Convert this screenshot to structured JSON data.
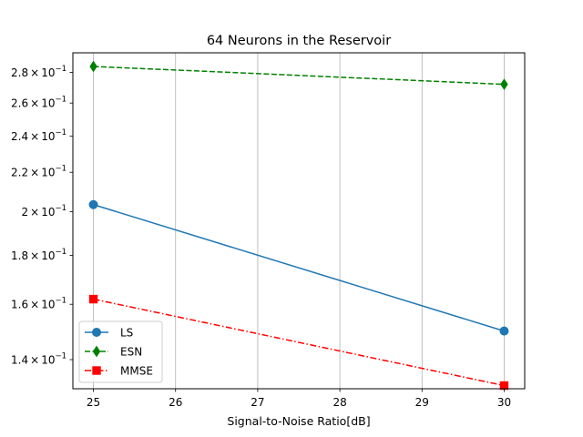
{
  "chart_data": {
    "type": "line",
    "title": "64 Neurons in the Reservoir",
    "xlabel": "Signal-to-Noise Ratio[dB]",
    "ylabel": "",
    "yscale": "log",
    "x": [
      25,
      30
    ],
    "xlim": [
      24.75,
      30.25
    ],
    "ylim": [
      0.1305,
      0.2935
    ],
    "xticks": [
      25,
      26,
      27,
      28,
      29,
      30
    ],
    "xtick_labels": [
      "25",
      "26",
      "27",
      "28",
      "29",
      "30"
    ],
    "yticks": [
      {
        "value": 0.14,
        "mantissa": "1.4",
        "times": "×",
        "base": "10",
        "exp": "−1"
      },
      {
        "value": 0.16,
        "mantissa": "1.6",
        "times": "×",
        "base": "10",
        "exp": "−1"
      },
      {
        "value": 0.18,
        "mantissa": "1.8",
        "times": "×",
        "base": "10",
        "exp": "−1"
      },
      {
        "value": 0.2,
        "mantissa": "2",
        "times": "×",
        "base": "10",
        "exp": "−1"
      },
      {
        "value": 0.22,
        "mantissa": "2.2",
        "times": "×",
        "base": "10",
        "exp": "−1"
      },
      {
        "value": 0.24,
        "mantissa": "2.4",
        "times": "×",
        "base": "10",
        "exp": "−1"
      },
      {
        "value": 0.26,
        "mantissa": "2.6",
        "times": "×",
        "base": "10",
        "exp": "−1"
      },
      {
        "value": 0.28,
        "mantissa": "2.8",
        "times": "×",
        "base": "10",
        "exp": "−1"
      }
    ],
    "grid": "x-major",
    "legend_position": "lower-left",
    "series": [
      {
        "name": "LS",
        "values": [
          0.2035,
          0.15
        ],
        "color": "#1f77b4",
        "linestyle": "solid",
        "marker": "circle"
      },
      {
        "name": "ESN",
        "values": [
          0.284,
          0.272
        ],
        "color": "#008000",
        "linestyle": "dashed",
        "marker": "diamond"
      },
      {
        "name": "MMSE",
        "values": [
          0.162,
          0.1315
        ],
        "color": "#ff0000",
        "linestyle": "dashdot",
        "marker": "square"
      }
    ]
  }
}
